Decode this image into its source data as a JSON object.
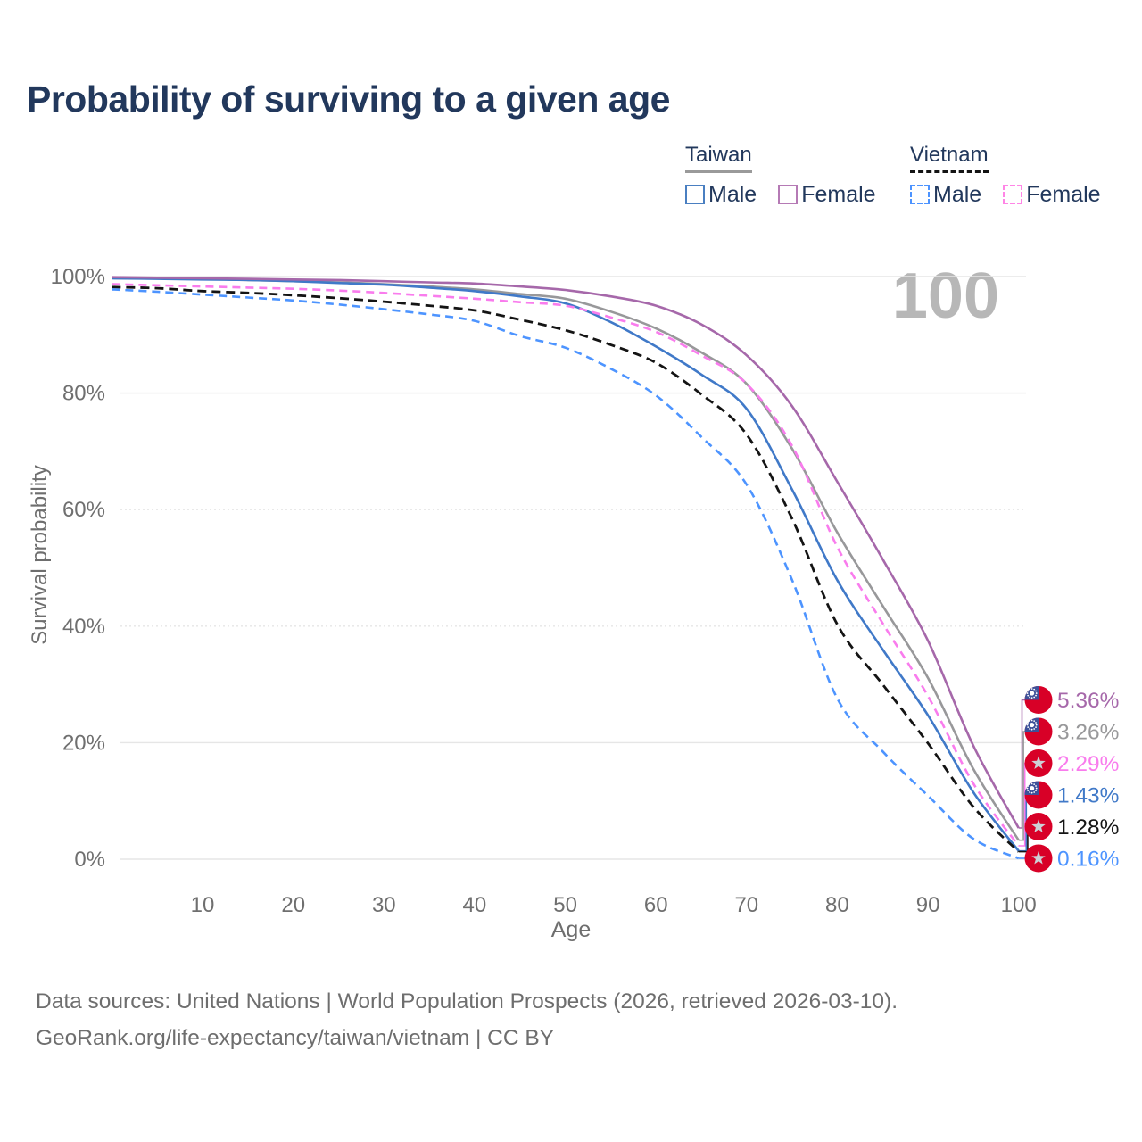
{
  "title": "Probability of surviving to a given age",
  "watermark": "100",
  "legend": {
    "groups": [
      {
        "country": "Taiwan",
        "line_style": "solid",
        "line_color": "#9a9a9a",
        "items": [
          {
            "label": "Male",
            "color": "#4a7fc1"
          },
          {
            "label": "Female",
            "color": "#b57ab5"
          }
        ]
      },
      {
        "country": "Vietnam",
        "line_style": "dashed",
        "line_color": "#141414",
        "items": [
          {
            "label": "Male",
            "color": "#4d94ff"
          },
          {
            "label": "Female",
            "color": "#ff85e6"
          }
        ]
      }
    ]
  },
  "chart_data": {
    "type": "line",
    "title": "Probability of surviving to a given age",
    "xlabel": "Age",
    "ylabel": "Survival probability",
    "xlim": [
      0,
      100
    ],
    "ylim": [
      0,
      100
    ],
    "grid": "horizontal",
    "x_ticks": [
      10,
      20,
      30,
      40,
      50,
      60,
      70,
      80,
      90,
      100
    ],
    "y_tick_values": [
      0,
      20,
      40,
      60,
      80,
      100
    ],
    "y_tick_labels": [
      "0%",
      "20%",
      "40%",
      "60%",
      "80%",
      "100%"
    ],
    "x": [
      0,
      5,
      10,
      15,
      20,
      25,
      30,
      35,
      40,
      45,
      50,
      55,
      60,
      65,
      70,
      75,
      80,
      85,
      90,
      95,
      100
    ],
    "series": [
      {
        "name": "Taiwan Female",
        "country": "Taiwan",
        "sex": "Female",
        "color": "#a668aa",
        "dash": false,
        "flag": "taiwan",
        "end_label": "5.36%",
        "end_value": 5.36,
        "values": [
          99.9,
          99.8,
          99.7,
          99.6,
          99.5,
          99.4,
          99.2,
          99.0,
          98.8,
          98.3,
          97.7,
          96.6,
          95.0,
          91.8,
          86.5,
          77.8,
          64.8,
          51.5,
          37.5,
          19.5,
          5.36
        ]
      },
      {
        "name": "Taiwan (both sexes)",
        "country": "Taiwan",
        "sex": "All",
        "color": "#98989a",
        "dash": false,
        "flag": "taiwan",
        "end_label": "3.26%",
        "end_value": 3.26,
        "values": [
          99.8,
          99.7,
          99.6,
          99.4,
          99.2,
          99.0,
          98.7,
          98.3,
          97.8,
          97.0,
          96.2,
          94.0,
          91.1,
          87.0,
          81.6,
          70.5,
          56.1,
          43.5,
          31.1,
          15.5,
          3.26
        ]
      },
      {
        "name": "Taiwan Male",
        "country": "Taiwan",
        "sex": "Male",
        "color": "#4079c8",
        "dash": false,
        "flag": "taiwan",
        "end_label": "1.43%",
        "end_value": 1.43,
        "values": [
          99.7,
          99.6,
          99.5,
          99.4,
          99.2,
          98.9,
          98.6,
          98.1,
          97.5,
          96.6,
          95.4,
          92.2,
          88.0,
          83.2,
          77.3,
          63.5,
          47.9,
          36.0,
          24.7,
          11.5,
          1.43
        ]
      },
      {
        "name": "Vietnam Female",
        "country": "Vietnam",
        "sex": "Female",
        "color": "#f97ced",
        "dash": true,
        "flag": "vietnam",
        "end_label": "2.29%",
        "end_value": 2.29,
        "values": [
          98.7,
          98.5,
          98.3,
          98.1,
          97.9,
          97.6,
          97.2,
          96.7,
          96.2,
          95.6,
          95.0,
          93.0,
          90.5,
          86.5,
          81.6,
          71.0,
          53.6,
          40.5,
          28.0,
          13.0,
          2.29
        ]
      },
      {
        "name": "Vietnam (both sexes)",
        "country": "Vietnam",
        "sex": "All",
        "color": "#141414",
        "dash": true,
        "flag": "vietnam",
        "end_label": "1.28%",
        "end_value": 1.28,
        "values": [
          98.2,
          98.0,
          97.5,
          97.2,
          96.8,
          96.3,
          95.7,
          95.0,
          94.2,
          92.6,
          90.8,
          88.3,
          85.2,
          79.8,
          72.9,
          58.5,
          40.3,
          30.0,
          19.9,
          9.0,
          1.28
        ]
      },
      {
        "name": "Vietnam Male",
        "country": "Vietnam",
        "sex": "Male",
        "color": "#4d94ff",
        "dash": true,
        "flag": "vietnam",
        "end_label": "0.16%",
        "end_value": 0.16,
        "values": [
          97.8,
          97.4,
          96.9,
          96.4,
          95.9,
          95.2,
          94.4,
          93.5,
          92.4,
          89.8,
          87.8,
          84.2,
          79.6,
          72.5,
          64.3,
          48.0,
          27.6,
          18.5,
          10.9,
          3.5,
          0.16
        ]
      }
    ]
  },
  "footer": {
    "line1": "Data sources: United Nations | World Population Prospects (2026, retrieved 2026-03-10).",
    "line2": "GeoRank.org/life-expectancy/taiwan/vietnam | CC BY"
  }
}
